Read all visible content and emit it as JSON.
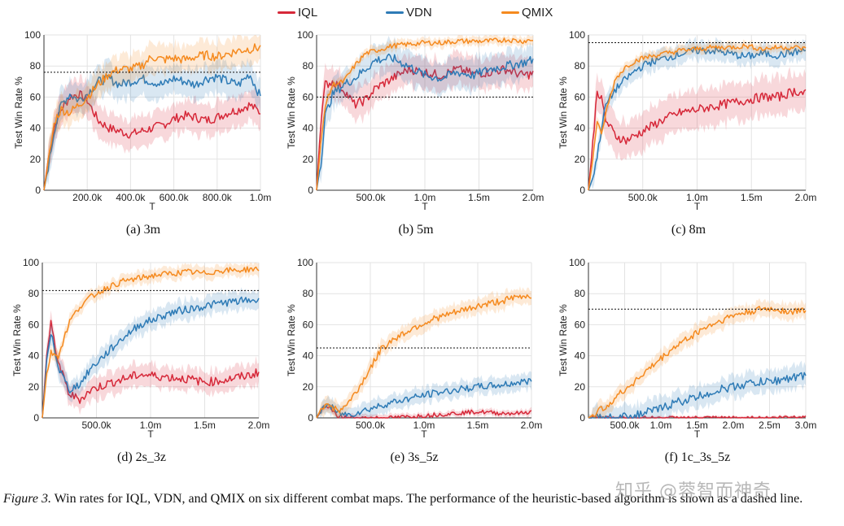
{
  "legend": {
    "items": [
      {
        "name": "IQL",
        "color": "#d62839"
      },
      {
        "name": "VDN",
        "color": "#2e7bb6"
      },
      {
        "name": "QMIX",
        "color": "#f58a1f"
      }
    ]
  },
  "colors": {
    "IQL": "#d62839",
    "VDN": "#2e7bb6",
    "QMIX": "#f58a1f"
  },
  "chart_data": [
    {
      "type": "line",
      "caption": "(a) 3m",
      "xlabel": "T",
      "ylabel": "Test Win Rate %",
      "xlim": [
        0,
        1000000
      ],
      "ylim": [
        0,
        100
      ],
      "xticks": [
        200000,
        400000,
        600000,
        800000,
        1000000
      ],
      "xtick_labels": [
        "200.0k",
        "400.0k",
        "600.0k",
        "800.0k",
        "1.0m"
      ],
      "yticks": [
        0,
        20,
        40,
        60,
        80,
        100
      ],
      "heuristic": 76,
      "series": [
        {
          "name": "IQL",
          "x": [
            0,
            20000,
            50000,
            80000,
            120000,
            160000,
            200000,
            250000,
            300000,
            350000,
            400000,
            450000,
            500000,
            550000,
            600000,
            650000,
            700000,
            750000,
            800000,
            850000,
            900000,
            950000,
            1000000
          ],
          "y": [
            0,
            20,
            42,
            52,
            60,
            62,
            58,
            45,
            40,
            38,
            36,
            38,
            40,
            42,
            46,
            48,
            47,
            45,
            47,
            50,
            52,
            55,
            50
          ],
          "band": 10
        },
        {
          "name": "VDN",
          "x": [
            0,
            20000,
            50000,
            80000,
            120000,
            160000,
            200000,
            250000,
            300000,
            350000,
            400000,
            450000,
            500000,
            550000,
            600000,
            650000,
            700000,
            750000,
            800000,
            850000,
            900000,
            950000,
            1000000
          ],
          "y": [
            0,
            15,
            40,
            55,
            62,
            58,
            62,
            70,
            72,
            68,
            70,
            72,
            70,
            68,
            72,
            70,
            68,
            72,
            73,
            70,
            68,
            75,
            60
          ],
          "band": 10
        },
        {
          "name": "QMIX",
          "x": [
            0,
            20000,
            50000,
            80000,
            120000,
            160000,
            200000,
            250000,
            300000,
            350000,
            400000,
            450000,
            500000,
            550000,
            600000,
            650000,
            700000,
            750000,
            800000,
            850000,
            900000,
            950000,
            1000000
          ],
          "y": [
            0,
            18,
            45,
            52,
            50,
            55,
            60,
            68,
            75,
            78,
            78,
            80,
            86,
            84,
            85,
            84,
            86,
            87,
            86,
            88,
            90,
            91,
            92
          ],
          "band": 9
        }
      ]
    },
    {
      "type": "line",
      "caption": "(b) 5m",
      "xlabel": "T",
      "ylabel": "Test Win Rate %",
      "xlim": [
        0,
        2000000
      ],
      "ylim": [
        0,
        100
      ],
      "xticks": [
        500000,
        1000000,
        1500000,
        2000000
      ],
      "xtick_labels": [
        "500.0k",
        "1.0m",
        "1.5m",
        "2.0m"
      ],
      "yticks": [
        0,
        20,
        40,
        60,
        80,
        100
      ],
      "heuristic": 60,
      "series": [
        {
          "name": "IQL",
          "x": [
            0,
            40000,
            80000,
            150000,
            250000,
            350000,
            450000,
            550000,
            700000,
            850000,
            1000000,
            1150000,
            1300000,
            1450000,
            1600000,
            1750000,
            1900000,
            2000000
          ],
          "y": [
            0,
            45,
            68,
            70,
            65,
            55,
            58,
            66,
            72,
            78,
            76,
            74,
            78,
            75,
            76,
            78,
            74,
            75
          ],
          "band": 10
        },
        {
          "name": "VDN",
          "x": [
            0,
            40000,
            80000,
            150000,
            250000,
            350000,
            450000,
            550000,
            700000,
            850000,
            1000000,
            1150000,
            1300000,
            1450000,
            1600000,
            1750000,
            1900000,
            2000000
          ],
          "y": [
            0,
            18,
            48,
            62,
            68,
            72,
            78,
            84,
            85,
            80,
            74,
            72,
            76,
            74,
            78,
            80,
            82,
            84
          ],
          "band": 10
        },
        {
          "name": "QMIX",
          "x": [
            0,
            40000,
            80000,
            150000,
            250000,
            350000,
            450000,
            550000,
            700000,
            850000,
            1000000,
            1150000,
            1300000,
            1450000,
            1600000,
            1750000,
            1900000,
            2000000
          ],
          "y": [
            0,
            30,
            55,
            68,
            70,
            80,
            88,
            90,
            93,
            94,
            95,
            95,
            96,
            96,
            96,
            97,
            96,
            97
          ],
          "band": 3
        }
      ]
    },
    {
      "type": "line",
      "caption": "(c) 8m",
      "xlabel": "T",
      "ylabel": "Test Win Rate %",
      "xlim": [
        0,
        2000000
      ],
      "ylim": [
        0,
        100
      ],
      "xticks": [
        500000,
        1000000,
        1500000,
        2000000
      ],
      "xtick_labels": [
        "500.0k",
        "1.0m",
        "1.5m",
        "2.0m"
      ],
      "yticks": [
        0,
        20,
        40,
        60,
        80,
        100
      ],
      "heuristic": 95,
      "series": [
        {
          "name": "IQL",
          "x": [
            0,
            40000,
            80000,
            120000,
            160000,
            250000,
            350000,
            450000,
            550000,
            700000,
            850000,
            1000000,
            1150000,
            1300000,
            1450000,
            1600000,
            1750000,
            1900000,
            2000000
          ],
          "y": [
            0,
            30,
            65,
            58,
            45,
            35,
            32,
            36,
            40,
            46,
            50,
            52,
            54,
            56,
            58,
            60,
            60,
            64,
            62
          ],
          "band": 12
        },
        {
          "name": "VDN",
          "x": [
            0,
            40000,
            80000,
            120000,
            160000,
            250000,
            350000,
            450000,
            550000,
            700000,
            850000,
            1000000,
            1150000,
            1300000,
            1450000,
            1600000,
            1750000,
            1900000,
            2000000
          ],
          "y": [
            0,
            8,
            22,
            40,
            55,
            65,
            72,
            78,
            82,
            85,
            88,
            90,
            90,
            88,
            86,
            88,
            87,
            89,
            90
          ],
          "band": 6
        },
        {
          "name": "QMIX",
          "x": [
            0,
            40000,
            80000,
            120000,
            160000,
            250000,
            350000,
            450000,
            550000,
            700000,
            850000,
            1000000,
            1150000,
            1300000,
            1450000,
            1600000,
            1750000,
            1900000,
            2000000
          ],
          "y": [
            0,
            20,
            45,
            35,
            50,
            72,
            80,
            84,
            86,
            88,
            90,
            91,
            92,
            92,
            93,
            91,
            92,
            92,
            91
          ],
          "band": 3
        }
      ]
    },
    {
      "type": "line",
      "caption": "(d) 2s_3z",
      "xlabel": "T",
      "ylabel": "Test Win Rate %",
      "xlim": [
        0,
        2000000
      ],
      "ylim": [
        0,
        100
      ],
      "xticks": [
        500000,
        1000000,
        1500000,
        2000000
      ],
      "xtick_labels": [
        "500.0k",
        "1.0m",
        "1.5m",
        "2.0m"
      ],
      "yticks": [
        0,
        20,
        40,
        60,
        80,
        100
      ],
      "heuristic": 82,
      "series": [
        {
          "name": "IQL",
          "x": [
            0,
            40000,
            80000,
            150000,
            250000,
            350000,
            450000,
            600000,
            750000,
            900000,
            1050000,
            1200000,
            1350000,
            1500000,
            1650000,
            1800000,
            1950000,
            2000000
          ],
          "y": [
            0,
            40,
            60,
            35,
            15,
            12,
            18,
            22,
            25,
            28,
            27,
            26,
            25,
            23,
            24,
            26,
            28,
            30
          ],
          "band": 7
        },
        {
          "name": "VDN",
          "x": [
            0,
            40000,
            80000,
            150000,
            250000,
            350000,
            450000,
            600000,
            750000,
            900000,
            1050000,
            1200000,
            1350000,
            1500000,
            1650000,
            1800000,
            1950000,
            2000000
          ],
          "y": [
            0,
            35,
            55,
            32,
            18,
            22,
            32,
            42,
            52,
            60,
            64,
            68,
            70,
            72,
            74,
            75,
            76,
            75
          ],
          "band": 6
        },
        {
          "name": "QMIX",
          "x": [
            0,
            40000,
            80000,
            150000,
            250000,
            350000,
            450000,
            600000,
            750000,
            900000,
            1050000,
            1200000,
            1350000,
            1500000,
            1650000,
            1800000,
            1950000,
            2000000
          ],
          "y": [
            0,
            28,
            42,
            40,
            62,
            72,
            78,
            84,
            88,
            90,
            92,
            93,
            94,
            93,
            95,
            95,
            96,
            95
          ],
          "band": 4
        }
      ]
    },
    {
      "type": "line",
      "caption": "(e) 3s_5z",
      "xlabel": "T",
      "ylabel": "Test Win Rate %",
      "xlim": [
        0,
        2000000
      ],
      "ylim": [
        0,
        100
      ],
      "xticks": [
        500000,
        1000000,
        1500000,
        2000000
      ],
      "xtick_labels": [
        "500.0k",
        "1.0m",
        "1.5m",
        "2.0m"
      ],
      "yticks": [
        0,
        20,
        40,
        60,
        80,
        100
      ],
      "heuristic": 45,
      "series": [
        {
          "name": "IQL",
          "x": [
            0,
            50000,
            100000,
            150000,
            200000,
            300000,
            500000,
            700000,
            900000,
            1100000,
            1300000,
            1500000,
            1700000,
            1900000,
            2000000
          ],
          "y": [
            0,
            5,
            8,
            4,
            1,
            0,
            0,
            0,
            1,
            2,
            3,
            4,
            3,
            3,
            4
          ],
          "band": 2
        },
        {
          "name": "VDN",
          "x": [
            0,
            50000,
            100000,
            150000,
            200000,
            300000,
            500000,
            700000,
            900000,
            1100000,
            1300000,
            1500000,
            1700000,
            1900000,
            2000000
          ],
          "y": [
            0,
            6,
            9,
            6,
            3,
            2,
            6,
            10,
            13,
            16,
            18,
            20,
            21,
            23,
            24
          ],
          "band": 5
        },
        {
          "name": "QMIX",
          "x": [
            0,
            50000,
            100000,
            150000,
            200000,
            300000,
            400000,
            500000,
            600000,
            700000,
            900000,
            1100000,
            1300000,
            1500000,
            1700000,
            1900000,
            2000000
          ],
          "y": [
            0,
            7,
            10,
            7,
            4,
            10,
            20,
            32,
            44,
            50,
            58,
            64,
            68,
            72,
            75,
            78,
            79
          ],
          "band": 5
        }
      ]
    },
    {
      "type": "line",
      "caption": "(f) 1c_3s_5z",
      "xlabel": "T",
      "ylabel": "Test Win Rate %",
      "xlim": [
        0,
        3000000
      ],
      "ylim": [
        0,
        100
      ],
      "xticks": [
        500000,
        1000000,
        1500000,
        2000000,
        2500000,
        3000000
      ],
      "xtick_labels": [
        "500.0k",
        "1.0m",
        "1.5m",
        "2.0m",
        "2.5m",
        "3.0m"
      ],
      "yticks": [
        0,
        20,
        40,
        60,
        80,
        100
      ],
      "heuristic": 70,
      "series": [
        {
          "name": "IQL",
          "x": [
            0,
            500000,
            1000000,
            1500000,
            2000000,
            2500000,
            3000000
          ],
          "y": [
            0,
            0,
            0,
            0,
            0,
            0,
            1
          ],
          "band": 1
        },
        {
          "name": "VDN",
          "x": [
            0,
            400000,
            700000,
            1000000,
            1200000,
            1400000,
            1600000,
            1800000,
            2000000,
            2200000,
            2400000,
            2600000,
            2800000,
            3000000
          ],
          "y": [
            0,
            0,
            2,
            6,
            10,
            12,
            15,
            18,
            20,
            22,
            23,
            24,
            26,
            27
          ],
          "band": 7
        },
        {
          "name": "QMIX",
          "x": [
            0,
            200000,
            400000,
            600000,
            800000,
            1000000,
            1200000,
            1400000,
            1600000,
            1800000,
            2000000,
            2200000,
            2400000,
            2600000,
            2800000,
            3000000
          ],
          "y": [
            0,
            6,
            14,
            22,
            30,
            38,
            46,
            52,
            58,
            62,
            66,
            68,
            70,
            70,
            68,
            70
          ],
          "band": 5
        }
      ]
    }
  ],
  "figure_caption": {
    "label": "Figure 3.",
    "text": " Win rates for IQL, VDN, and QMIX on six different combat maps. The performance of the heuristic-based algorithm is shown as a dashed line."
  },
  "watermark": "知乎 @蓉智而神奇"
}
